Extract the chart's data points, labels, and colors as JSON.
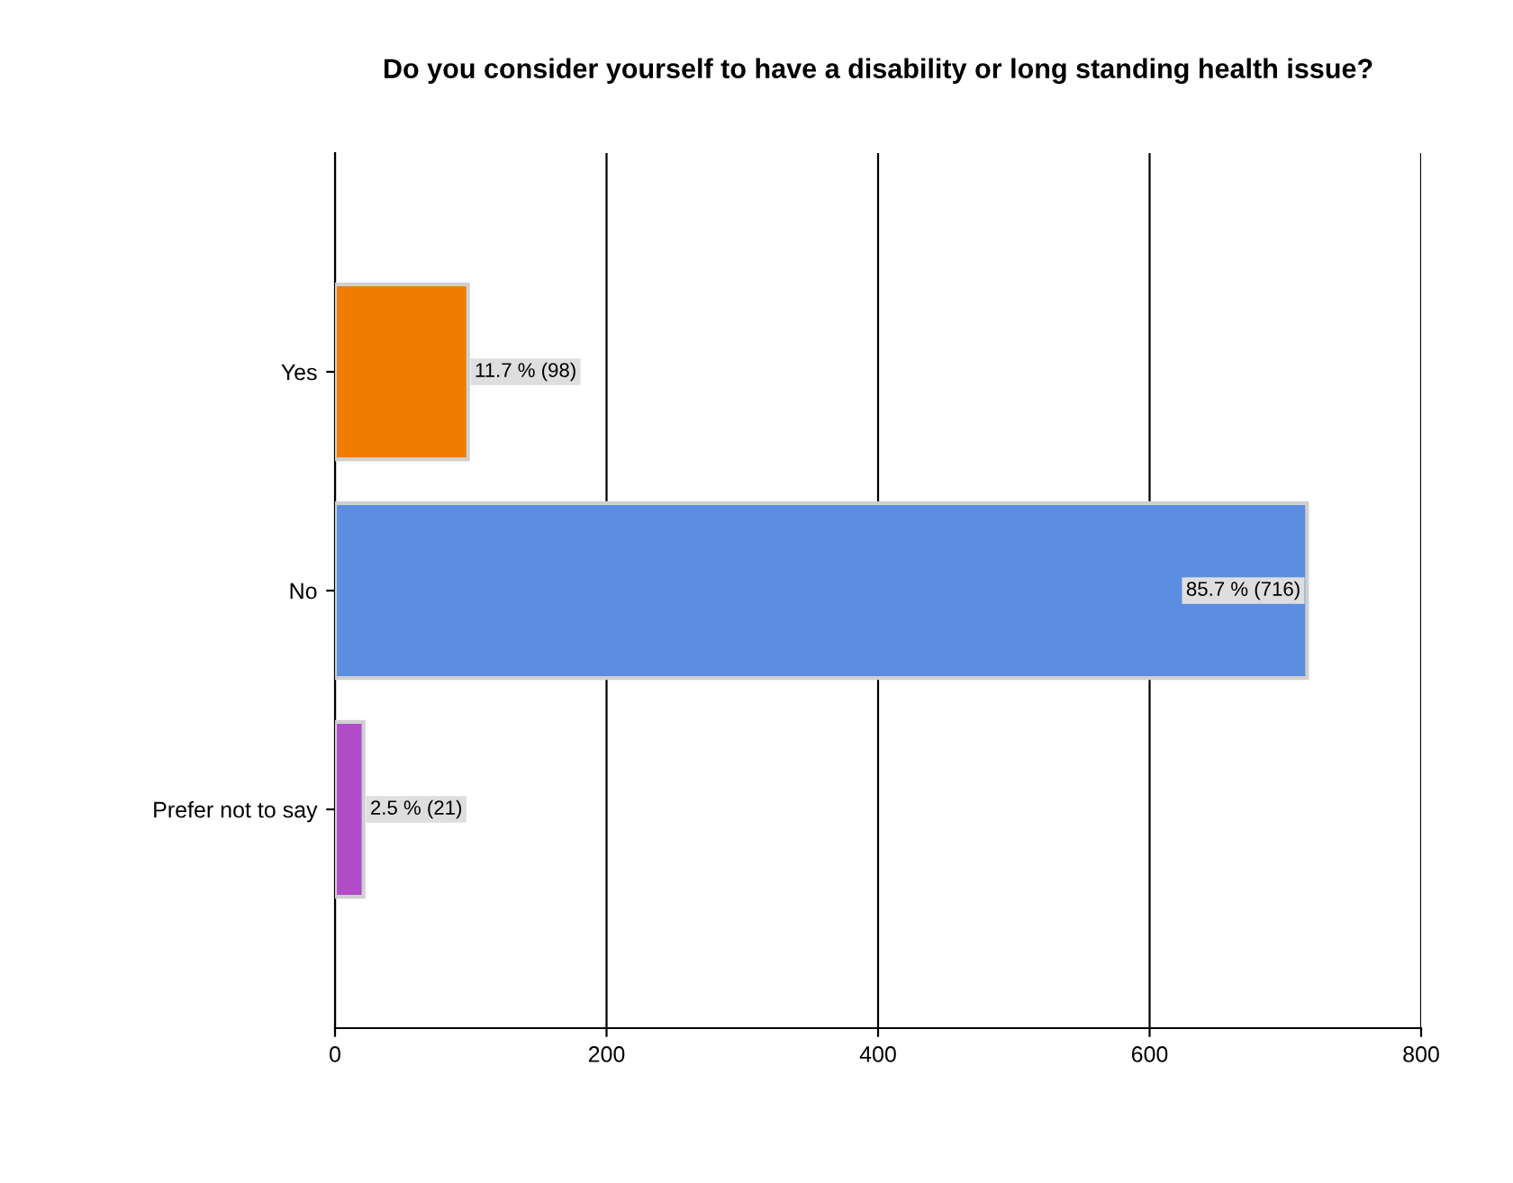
{
  "chart_data": {
    "type": "bar",
    "orientation": "horizontal",
    "title": "Do you consider yourself to have a disability or long standing health issue?",
    "categories": [
      "Yes",
      "No",
      "Prefer not to say"
    ],
    "values": [
      98,
      716,
      21
    ],
    "colors": [
      "#f07c00",
      "#5b8ee0",
      "#b04cc8"
    ],
    "value_labels": [
      "11.7 % (98)",
      "85.7 % (716)",
      "2.5 % (21)"
    ],
    "xlim": [
      0,
      800
    ],
    "xticks": [
      0,
      200,
      400,
      600,
      800
    ],
    "grid": "x",
    "legend": false
  }
}
